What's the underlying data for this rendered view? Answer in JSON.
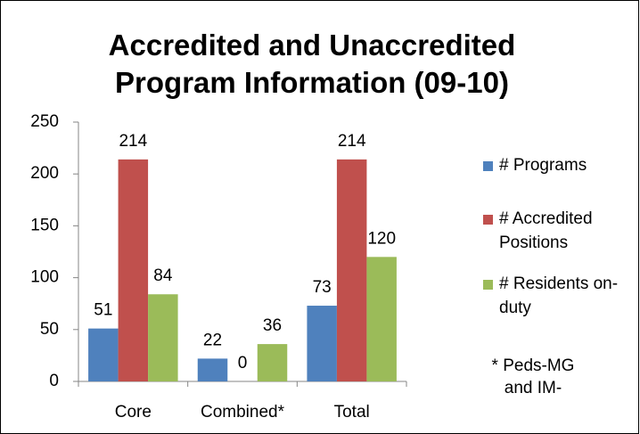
{
  "chart_data": {
    "type": "bar",
    "title": "Accredited and Unaccredited Program Information (09-10)",
    "categories": [
      "Core",
      "Combined*",
      "Total"
    ],
    "series": [
      {
        "name": "# Programs",
        "color": "#4f81bd",
        "values": [
          51,
          22,
          73
        ]
      },
      {
        "name": "# Accredited Positions",
        "color": "#c0504d",
        "values": [
          214,
          0,
          214
        ]
      },
      {
        "name": "# Residents on-duty",
        "color": "#9bbb59",
        "values": [
          84,
          36,
          120
        ]
      }
    ],
    "ylim": [
      0,
      250
    ],
    "yticks": [
      0,
      50,
      100,
      150,
      200,
      250
    ],
    "legend": "right",
    "annotation": "* Peds-MG and IM-"
  }
}
